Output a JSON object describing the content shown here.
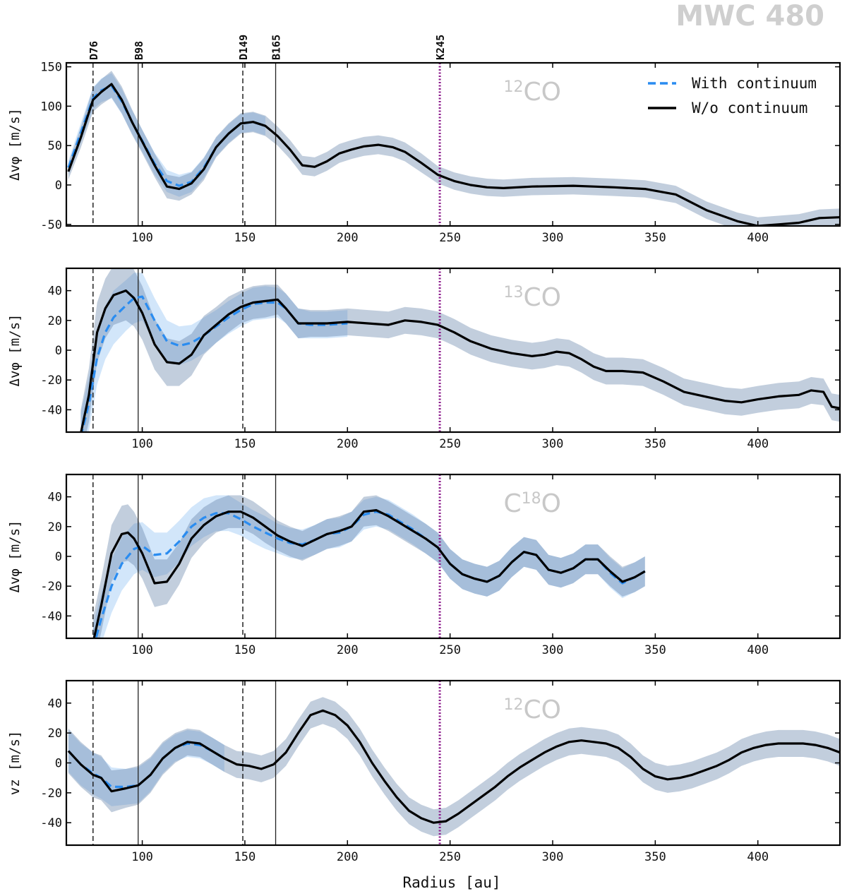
{
  "figure_title": "MWC 480",
  "colors": {
    "with_continuum": "#2a8cf0",
    "without_continuum": "#000000",
    "with_band": "#9cc8f4",
    "without_band": "#5f7fa6",
    "kink_line": "#8b1a8b",
    "label_gray": "#c8c8c8"
  },
  "chart_data": [
    {
      "type": "line",
      "panel": "12CO azimuthal velocity",
      "label": "12CO",
      "ylabel": "Δvφ [m/s]",
      "xlabel": "",
      "xlim": [
        63,
        440
      ],
      "ylim": [
        -52,
        155
      ],
      "yticks": [
        -50,
        0,
        50,
        100,
        150
      ],
      "xticks": [
        100,
        150,
        200,
        250,
        300,
        350,
        400
      ],
      "legend": {
        "position": "top-right",
        "entries": [
          "With continuum",
          "W/o continuum"
        ]
      },
      "features": [
        {
          "name": "D76",
          "r": 76,
          "style": "dashed"
        },
        {
          "name": "B98",
          "r": 98,
          "style": "solid"
        },
        {
          "name": "D149",
          "r": 149,
          "style": "dashed"
        },
        {
          "name": "B165",
          "r": 165,
          "style": "solid"
        },
        {
          "name": "K245",
          "r": 245,
          "style": "dotted"
        }
      ],
      "series": [
        {
          "name": "W/o continuum",
          "style": "solid",
          "x": [
            64,
            70,
            76,
            80,
            85,
            90,
            95,
            100,
            106,
            112,
            118,
            124,
            130,
            136,
            142,
            148,
            154,
            160,
            166,
            172,
            178,
            184,
            190,
            196,
            202,
            208,
            215,
            222,
            228,
            236,
            244,
            252,
            260,
            268,
            276,
            290,
            310,
            320,
            330,
            345,
            360,
            375,
            390,
            400,
            410,
            420,
            430,
            440
          ],
          "y": [
            17,
            60,
            108,
            118,
            128,
            108,
            80,
            55,
            25,
            -2,
            -5,
            2,
            20,
            48,
            65,
            78,
            80,
            75,
            62,
            45,
            25,
            23,
            30,
            40,
            45,
            49,
            51,
            48,
            42,
            28,
            13,
            5,
            0,
            -3,
            -4,
            -2,
            -1,
            -2,
            -3,
            -5,
            -12,
            -32,
            -46,
            -52,
            -50,
            -48,
            -42,
            -41
          ],
          "err": [
            10,
            13,
            15,
            16,
            17,
            17,
            16,
            15,
            15,
            15,
            15,
            14,
            14,
            13,
            13,
            13,
            13,
            13,
            12,
            12,
            12,
            12,
            12,
            12,
            12,
            12,
            12,
            12,
            12,
            12,
            11,
            11,
            11,
            11,
            11,
            11,
            11,
            11,
            11,
            11,
            11,
            11,
            11,
            11,
            11,
            11,
            11,
            11
          ]
        },
        {
          "name": "With continuum",
          "style": "dashed",
          "x": [
            64,
            70,
            76,
            80,
            85,
            90,
            95,
            100,
            106,
            112,
            118,
            124,
            130,
            136,
            142,
            148,
            154,
            160
          ],
          "y": [
            22,
            66,
            110,
            120,
            126,
            106,
            80,
            56,
            27,
            5,
            -1,
            4,
            22,
            48,
            65,
            78,
            80,
            75
          ],
          "err": [
            9,
            12,
            14,
            15,
            16,
            16,
            15,
            14,
            14,
            14,
            14,
            13,
            13,
            12,
            12,
            12,
            12,
            12
          ]
        }
      ]
    },
    {
      "type": "line",
      "panel": "13CO azimuthal velocity",
      "label": "13CO",
      "ylabel": "Δvφ [m/s]",
      "xlabel": "",
      "xlim": [
        63,
        440
      ],
      "ylim": [
        -55,
        55
      ],
      "yticks": [
        -40,
        -20,
        0,
        20,
        40
      ],
      "xticks": [
        100,
        150,
        200,
        250,
        300,
        350,
        400
      ],
      "series": [
        {
          "name": "W/o continuum",
          "style": "solid",
          "x": [
            70,
            74,
            78,
            82,
            86,
            92,
            96,
            100,
            106,
            112,
            118,
            124,
            130,
            136,
            142,
            148,
            154,
            160,
            166,
            170,
            176,
            182,
            190,
            200,
            210,
            220,
            228,
            236,
            244,
            252,
            260,
            270,
            280,
            290,
            296,
            302,
            308,
            314,
            320,
            326,
            334,
            344,
            354,
            364,
            374,
            384,
            392,
            400,
            410,
            420,
            426,
            432,
            436,
            440
          ],
          "y": [
            -56,
            -30,
            12,
            28,
            37,
            40,
            35,
            25,
            4,
            -8,
            -9,
            -3,
            10,
            17,
            24,
            29,
            32,
            33,
            34,
            28,
            18,
            18,
            18,
            19,
            18,
            17,
            20,
            19,
            17,
            12,
            6,
            1,
            -2,
            -4,
            -3,
            -1,
            -2,
            -6,
            -11,
            -14,
            -14,
            -15,
            -21,
            -28,
            -31,
            -34,
            -35,
            -33,
            -31,
            -30,
            -27,
            -28,
            -38,
            -39
          ],
          "err": [
            16,
            18,
            20,
            20,
            20,
            20,
            19,
            18,
            17,
            16,
            15,
            14,
            13,
            12,
            12,
            11,
            11,
            11,
            10,
            10,
            10,
            9,
            9,
            9,
            9,
            9,
            9,
            9,
            9,
            9,
            9,
            9,
            9,
            9,
            9,
            9,
            9,
            9,
            9,
            9,
            9,
            9,
            9,
            9,
            9,
            9,
            9,
            9,
            9,
            9,
            9,
            9,
            9,
            9
          ]
        },
        {
          "name": "With continuum",
          "style": "dashed",
          "x": [
            70,
            74,
            78,
            82,
            86,
            92,
            96,
            100,
            106,
            112,
            118,
            124,
            130,
            136,
            142,
            148,
            154,
            160,
            166,
            170,
            176,
            182,
            190,
            200
          ],
          "y": [
            -58,
            -36,
            -5,
            12,
            22,
            30,
            35,
            36,
            20,
            6,
            3,
            5,
            10,
            16,
            22,
            27,
            31,
            32,
            32,
            28,
            18,
            17,
            17,
            18
          ],
          "err": [
            16,
            18,
            18,
            18,
            18,
            17,
            17,
            16,
            15,
            14,
            13,
            12,
            12,
            11,
            11,
            11,
            11,
            11,
            10,
            10,
            10,
            9,
            9,
            9
          ]
        }
      ]
    },
    {
      "type": "line",
      "panel": "C18O azimuthal velocity",
      "label": "C18O",
      "ylabel": "Δvφ [m/s]",
      "xlabel": "",
      "xlim": [
        63,
        440
      ],
      "ylim": [
        -55,
        55
      ],
      "yticks": [
        -40,
        -20,
        0,
        20,
        40
      ],
      "xticks": [
        100,
        150,
        200,
        250,
        300,
        350,
        400
      ],
      "series": [
        {
          "name": "W/o continuum",
          "style": "solid",
          "x": [
            76,
            80,
            85,
            90,
            93,
            96,
            100,
            106,
            112,
            118,
            124,
            130,
            136,
            142,
            148,
            154,
            160,
            166,
            172,
            178,
            184,
            190,
            196,
            202,
            208,
            214,
            220,
            226,
            232,
            238,
            244,
            250,
            256,
            262,
            268,
            274,
            280,
            286,
            292,
            298,
            304,
            310,
            316,
            322,
            328,
            334,
            340,
            345
          ],
          "y": [
            -58,
            -33,
            2,
            15,
            16,
            12,
            2,
            -18,
            -17,
            -5,
            12,
            21,
            27,
            30,
            30,
            26,
            20,
            14,
            10,
            7,
            11,
            15,
            17,
            20,
            30,
            31,
            27,
            22,
            17,
            12,
            6,
            -5,
            -12,
            -15,
            -17,
            -13,
            -4,
            3,
            1,
            -9,
            -11,
            -8,
            -2,
            -2,
            -10,
            -17,
            -14,
            -10
          ],
          "err": [
            17,
            18,
            19,
            19,
            19,
            18,
            17,
            16,
            15,
            14,
            13,
            12,
            11,
            11,
            11,
            11,
            11,
            10,
            10,
            10,
            10,
            10,
            10,
            10,
            10,
            10,
            10,
            10,
            10,
            10,
            10,
            10,
            10,
            10,
            10,
            10,
            10,
            10,
            10,
            10,
            10,
            10,
            10,
            10,
            10,
            10,
            10,
            10
          ]
        },
        {
          "name": "With continuum",
          "style": "dashed",
          "x": [
            76,
            80,
            85,
            90,
            96,
            100,
            106,
            112,
            118,
            124,
            130,
            136,
            142,
            148,
            154,
            160,
            166,
            172,
            178,
            184,
            190,
            196,
            202,
            208,
            214,
            220,
            226,
            232,
            238,
            244,
            250,
            256,
            262,
            268,
            274,
            280,
            286,
            292,
            298,
            304,
            310,
            316,
            322,
            328,
            334,
            340,
            345
          ],
          "y": [
            -62,
            -42,
            -20,
            -5,
            5,
            7,
            1,
            2,
            10,
            20,
            26,
            29,
            29,
            25,
            20,
            16,
            12,
            9,
            8,
            11,
            15,
            16,
            20,
            28,
            30,
            28,
            23,
            18,
            12,
            6,
            -5,
            -12,
            -15,
            -17,
            -13,
            -4,
            3,
            1,
            -9,
            -11,
            -8,
            -2,
            -2,
            -11,
            -18,
            -14,
            -10
          ],
          "err": [
            16,
            17,
            18,
            18,
            17,
            16,
            15,
            14,
            14,
            13,
            13,
            12,
            12,
            11,
            11,
            11,
            10,
            10,
            10,
            10,
            10,
            10,
            10,
            10,
            10,
            10,
            10,
            10,
            10,
            10,
            10,
            10,
            10,
            10,
            10,
            10,
            10,
            10,
            10,
            10,
            10,
            10,
            10,
            10,
            10,
            10,
            10
          ]
        }
      ]
    },
    {
      "type": "line",
      "panel": "12CO vertical velocity",
      "label": "12CO",
      "ylabel": "vz [m/s]",
      "xlabel": "Radius [au]",
      "xlim": [
        63,
        440
      ],
      "ylim": [
        -55,
        55
      ],
      "yticks": [
        -40,
        -20,
        0,
        20,
        40
      ],
      "xticks": [
        100,
        150,
        200,
        250,
        300,
        350,
        400
      ],
      "series": [
        {
          "name": "W/o continuum",
          "style": "solid",
          "x": [
            64,
            70,
            76,
            80,
            85,
            92,
            98,
            104,
            110,
            116,
            122,
            128,
            134,
            140,
            146,
            152,
            158,
            164,
            170,
            176,
            182,
            188,
            194,
            200,
            206,
            212,
            218,
            224,
            230,
            236,
            242,
            248,
            254,
            260,
            266,
            272,
            278,
            284,
            290,
            296,
            302,
            308,
            314,
            320,
            326,
            332,
            338,
            344,
            350,
            356,
            362,
            368,
            374,
            380,
            386,
            392,
            398,
            404,
            410,
            416,
            422,
            428,
            434,
            440
          ],
          "y": [
            8,
            -1,
            -8,
            -10,
            -19,
            -17,
            -15,
            -8,
            3,
            10,
            14,
            13,
            8,
            3,
            -1,
            -2,
            -4,
            -1,
            7,
            20,
            32,
            35,
            32,
            25,
            14,
            0,
            -12,
            -23,
            -32,
            -37,
            -40,
            -39,
            -34,
            -28,
            -22,
            -16,
            -9,
            -3,
            2,
            7,
            11,
            14,
            15,
            14,
            13,
            10,
            4,
            -4,
            -9,
            -11,
            -10,
            -8,
            -5,
            -2,
            2,
            7,
            10,
            12,
            13,
            13,
            13,
            12,
            10,
            7
          ],
          "err": [
            15,
            15,
            15,
            15,
            14,
            13,
            13,
            12,
            11,
            10,
            9,
            9,
            9,
            9,
            9,
            9,
            9,
            9,
            9,
            9,
            9,
            9,
            9,
            9,
            9,
            9,
            9,
            9,
            9,
            9,
            9,
            9,
            9,
            9,
            9,
            9,
            9,
            9,
            9,
            9,
            9,
            9,
            9,
            9,
            9,
            9,
            9,
            9,
            9,
            9,
            9,
            9,
            9,
            9,
            9,
            9,
            9,
            9,
            9,
            9,
            9,
            9,
            9,
            9
          ]
        },
        {
          "name": "With continuum",
          "style": "dashed",
          "x": [
            64,
            70,
            76,
            80,
            85,
            92,
            98,
            104,
            110,
            116,
            122,
            128,
            134,
            140
          ],
          "y": [
            8,
            -1,
            -7,
            -10,
            -16,
            -16,
            -15,
            -8,
            3,
            10,
            13,
            12,
            8,
            3
          ],
          "err": [
            14,
            14,
            14,
            14,
            13,
            12,
            12,
            11,
            10,
            9,
            9,
            9,
            9,
            9
          ]
        }
      ]
    }
  ],
  "panel_labels": [
    "12CO",
    "13CO",
    "C18O",
    "12CO"
  ],
  "feature_labels": [
    "D76",
    "B98",
    "D149",
    "B165",
    "K245"
  ],
  "legend": {
    "with_label": "With continuum",
    "without_label": "W/o continuum"
  },
  "xlabel": "Radius [au]",
  "ylabels": [
    "Δvφ [m/s]",
    "Δvφ [m/s]",
    "Δvφ [m/s]",
    "vz [m/s]"
  ]
}
